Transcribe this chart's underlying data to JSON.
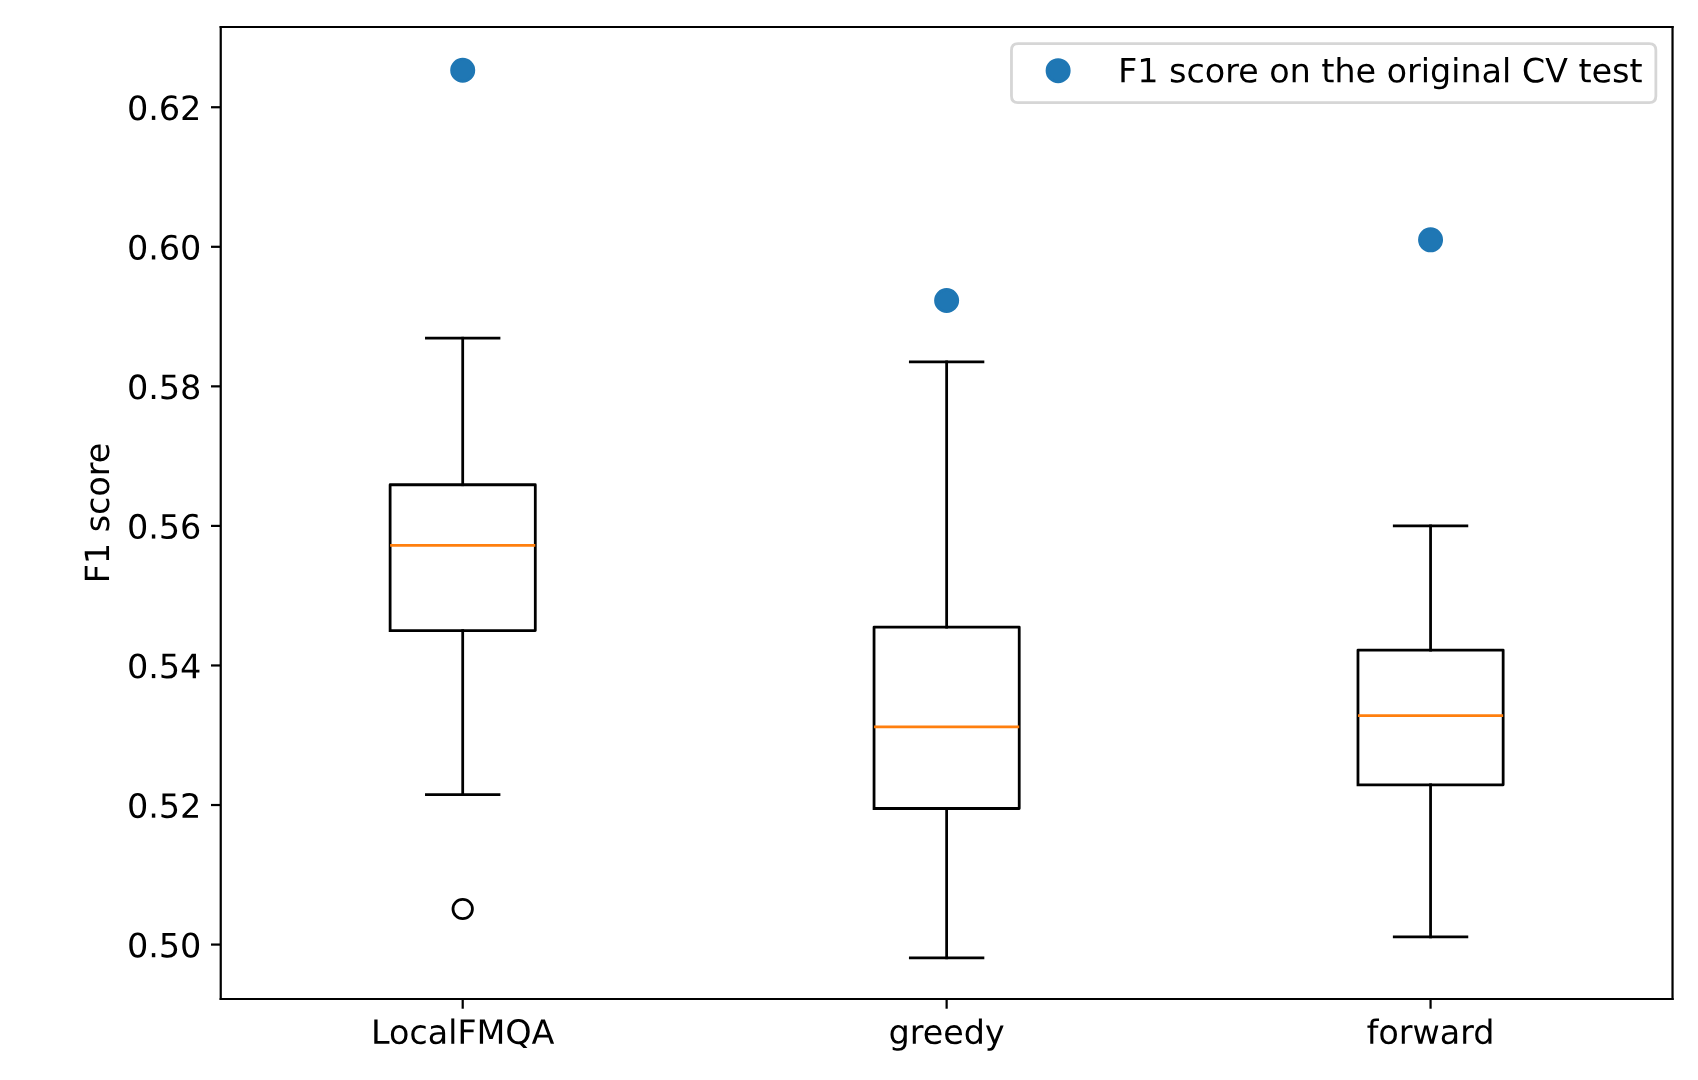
{
  "chart_data": {
    "type": "box",
    "ylabel": "F1 score",
    "categories": [
      "LocalFMQA",
      "greedy",
      "forward"
    ],
    "boxes": [
      {
        "low": 0.5215,
        "q1": 0.545,
        "median": 0.5572,
        "q3": 0.5659,
        "high": 0.5869,
        "outliers": [
          0.5051
        ]
      },
      {
        "low": 0.4981,
        "q1": 0.5195,
        "median": 0.5312,
        "q3": 0.5455,
        "high": 0.5835
      },
      {
        "low": 0.5011,
        "q1": 0.5229,
        "median": 0.5328,
        "q3": 0.5422,
        "high": 0.56
      }
    ],
    "series": [
      {
        "type": "scatter",
        "name": "F1 score on the original CV test",
        "color": "#1f77b4",
        "x": [
          "LocalFMQA",
          "greedy",
          "forward"
        ],
        "values": [
          0.6253,
          0.5923,
          0.601
        ],
        "marker": "circle"
      }
    ],
    "ylim": [
      0.4922,
      0.6315
    ],
    "yticks": [
      {
        "value": 0.5,
        "label": "0.50"
      },
      {
        "value": 0.52,
        "label": "0.52"
      },
      {
        "value": 0.54,
        "label": "0.54"
      },
      {
        "value": 0.56,
        "label": "0.56"
      },
      {
        "value": 0.58,
        "label": "0.58"
      },
      {
        "value": 0.6,
        "label": "0.60"
      },
      {
        "value": 0.62,
        "label": "0.62"
      }
    ],
    "legend": "top right"
  }
}
